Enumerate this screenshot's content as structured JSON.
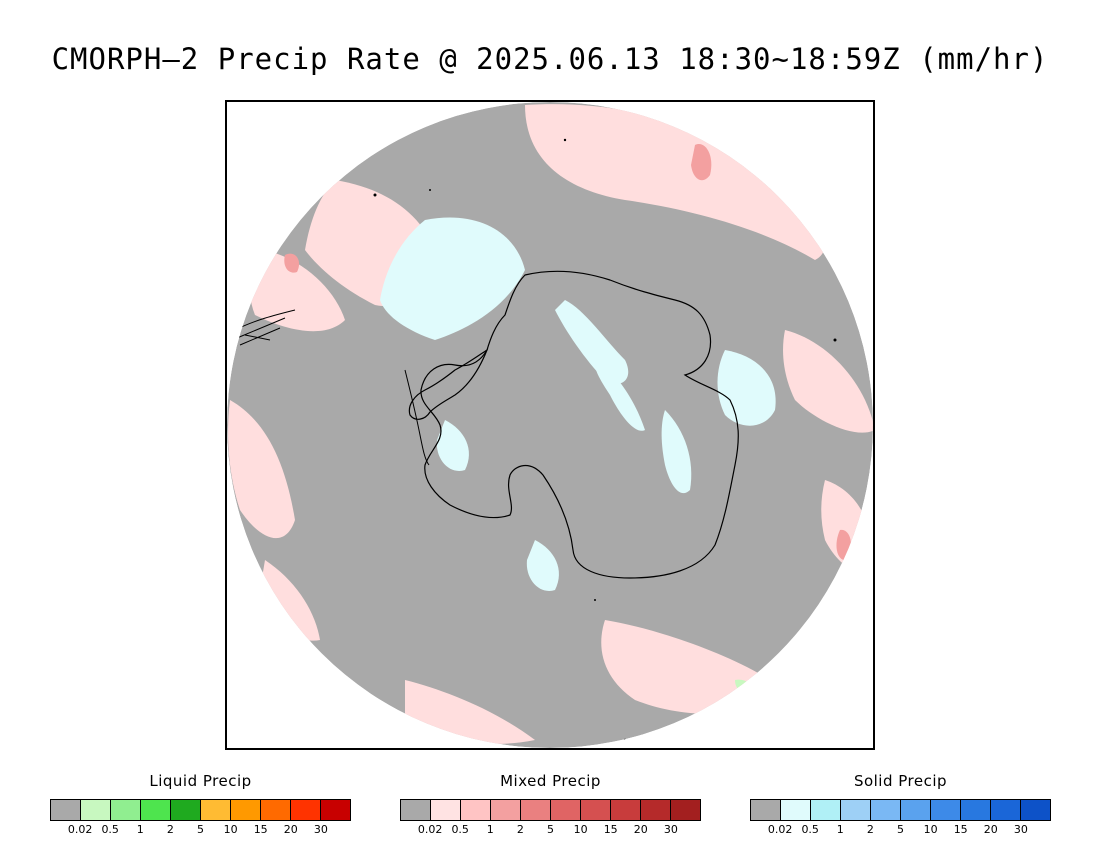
{
  "title": "CMORPH–2 Precip Rate @ 2025.06.13 18:30~18:59Z (mm/hr)",
  "map": {
    "projection": "south polar stereographic",
    "colors": {
      "no_precip": "#a9a9a9",
      "mixed_light": "#ffdede",
      "mixed_moderate": "#f3a0a0",
      "solid_light": "#e0fbfc",
      "liquid_light": "#c8f8c0",
      "coastline": "#000000"
    }
  },
  "legends": [
    {
      "title": "Liquid Precip",
      "colors": [
        "#a9a9a9",
        "#c8f8c0",
        "#90ee90",
        "#4ee44e",
        "#1faa1f",
        "#ffbb33",
        "#ff9900",
        "#ff6a00",
        "#ff3300",
        "#c80000"
      ],
      "ticks": [
        "0.02",
        "0.5",
        "1",
        "2",
        "5",
        "10",
        "15",
        "20",
        "30"
      ]
    },
    {
      "title": "Mixed Precip",
      "colors": [
        "#a9a9a9",
        "#ffe3e3",
        "#ffc4c4",
        "#f3a0a0",
        "#ea8080",
        "#e06464",
        "#d55050",
        "#c83c3c",
        "#b52a2a",
        "#a31f1f"
      ],
      "ticks": [
        "0.02",
        "0.5",
        "1",
        "2",
        "5",
        "10",
        "15",
        "20",
        "30"
      ]
    },
    {
      "title": "Solid Precip",
      "colors": [
        "#a9a9a9",
        "#e0fbfc",
        "#b0f0f6",
        "#9ed0f6",
        "#7ab8f4",
        "#5aa2ee",
        "#3d8ae8",
        "#2878e0",
        "#1a66d8",
        "#0d52c8"
      ],
      "ticks": [
        "0.02",
        "0.5",
        "1",
        "2",
        "5",
        "10",
        "15",
        "20",
        "30"
      ]
    }
  ]
}
